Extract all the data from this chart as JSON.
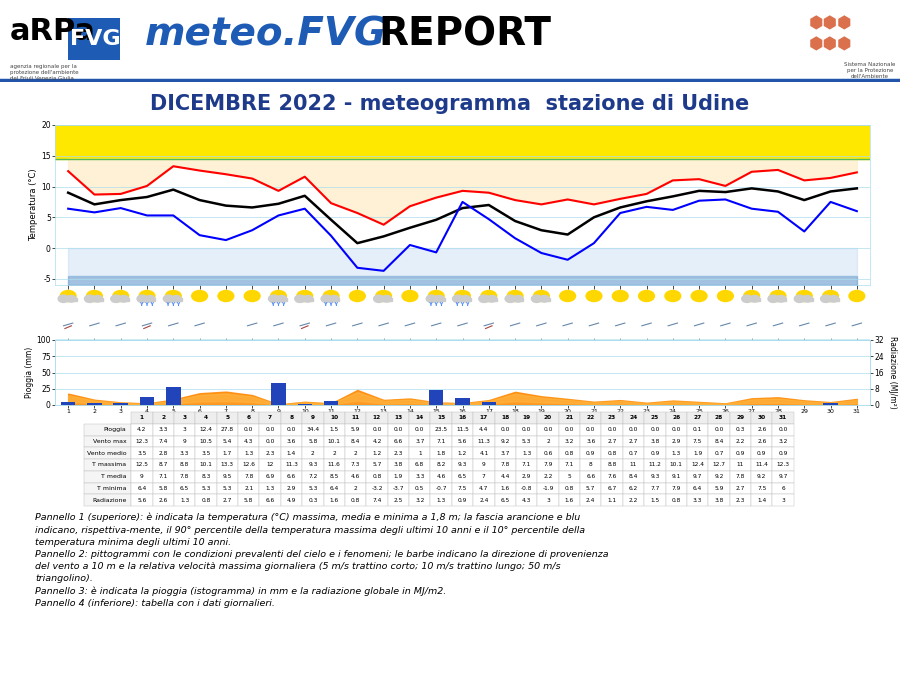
{
  "title": "DICEMBRE 2022 - meteogramma  stazione di Udine",
  "days": [
    1,
    2,
    3,
    4,
    5,
    6,
    7,
    8,
    9,
    10,
    11,
    12,
    13,
    14,
    15,
    16,
    17,
    18,
    19,
    20,
    21,
    22,
    23,
    24,
    25,
    26,
    27,
    28,
    29,
    30,
    31
  ],
  "t_max": [
    12.5,
    8.7,
    8.8,
    10.1,
    13.3,
    12.6,
    12.0,
    11.3,
    9.3,
    11.6,
    7.3,
    5.7,
    3.8,
    6.8,
    8.2,
    9.3,
    9.0,
    7.8,
    7.1,
    7.9,
    7.1,
    8.0,
    8.8,
    11.0,
    11.2,
    10.1,
    12.4,
    12.7,
    11.0,
    11.4,
    12.3
  ],
  "t_med": [
    9.0,
    7.1,
    7.8,
    8.3,
    9.5,
    7.8,
    6.9,
    6.6,
    7.2,
    8.5,
    4.6,
    0.8,
    1.9,
    3.3,
    4.6,
    6.5,
    7.0,
    4.4,
    2.9,
    2.2,
    5.0,
    6.6,
    7.6,
    8.4,
    9.3,
    9.1,
    9.7,
    9.2,
    7.8,
    9.2,
    9.7
  ],
  "t_min": [
    6.4,
    5.8,
    6.5,
    5.3,
    5.3,
    2.1,
    1.3,
    2.9,
    5.3,
    6.4,
    2.0,
    -3.2,
    -3.7,
    0.5,
    -0.7,
    7.5,
    4.7,
    1.6,
    -0.8,
    -1.9,
    0.8,
    5.7,
    6.7,
    6.2,
    7.7,
    7.9,
    6.4,
    5.9,
    2.7,
    7.5,
    6.0
  ],
  "t_max_clim_90": 14.5,
  "t_min_clim_10": -4.5,
  "pioggia": [
    4.2,
    3.3,
    3.0,
    12.4,
    27.8,
    0.0,
    0.0,
    0.0,
    34.4,
    1.5,
    5.9,
    0.0,
    0.0,
    0.0,
    23.5,
    11.5,
    4.4,
    0.0,
    0.0,
    0.0,
    0.0,
    0.0,
    0.0,
    0.0,
    0.0,
    0.0,
    0.1,
    0.0,
    0.3,
    2.6,
    0.0
  ],
  "radiazione": [
    5.6,
    2.6,
    1.3,
    0.8,
    2.7,
    5.8,
    6.6,
    4.9,
    0.3,
    1.6,
    0.8,
    7.4,
    2.5,
    3.2,
    1.3,
    0.9,
    2.4,
    6.5,
    4.3,
    3.0,
    1.6,
    2.4,
    1.1,
    2.2,
    1.5,
    0.8,
    3.3,
    3.8,
    2.3,
    1.4,
    3.0
  ],
  "vento_max": [
    12.3,
    7.4,
    9.0,
    10.5,
    5.4,
    4.3,
    0.0,
    3.6,
    5.8,
    10.1,
    8.4,
    4.2,
    6.6,
    3.7,
    7.1,
    5.6,
    11.3,
    9.2,
    5.3,
    2.0,
    3.2,
    3.6,
    2.7,
    2.7,
    3.8,
    2.9,
    7.5,
    8.4,
    2.2,
    2.6,
    3.2
  ],
  "table_rows": [
    {
      "label": "Pioggia",
      "values": [
        4.2,
        3.3,
        3.0,
        12.4,
        27.8,
        0.0,
        0.0,
        0.0,
        34.4,
        1.5,
        5.9,
        0.0,
        0.0,
        0.0,
        23.5,
        11.5,
        4.4,
        0.0,
        0.0,
        0.0,
        0.0,
        0.0,
        0.0,
        0.0,
        0.0,
        0.0,
        0.1,
        0.0,
        0.3,
        2.6,
        0.0
      ]
    },
    {
      "label": "Vento max",
      "values": [
        12.3,
        7.4,
        9.0,
        10.5,
        5.4,
        4.3,
        0.0,
        3.6,
        5.8,
        10.1,
        8.4,
        4.2,
        6.6,
        3.7,
        7.1,
        5.6,
        11.3,
        9.2,
        5.3,
        2.0,
        3.2,
        3.6,
        2.7,
        2.7,
        3.8,
        2.9,
        7.5,
        8.4,
        2.2,
        2.6,
        3.2
      ]
    },
    {
      "label": "Vento medio",
      "values": [
        3.5,
        2.8,
        3.3,
        3.5,
        1.7,
        1.3,
        2.3,
        1.4,
        2.0,
        2.0,
        2.0,
        1.2,
        2.3,
        1.0,
        1.8,
        1.2,
        4.1,
        3.7,
        1.3,
        0.6,
        0.8,
        0.9,
        0.8,
        0.7,
        0.9,
        1.3,
        1.9,
        0.7,
        0.9,
        0.9,
        0.9
      ]
    },
    {
      "label": "T massima",
      "values": [
        12.5,
        8.7,
        8.8,
        10.1,
        13.3,
        12.6,
        12.0,
        11.3,
        9.3,
        11.6,
        7.3,
        5.7,
        3.8,
        6.8,
        8.2,
        9.3,
        9.0,
        7.8,
        7.1,
        7.9,
        7.1,
        8.0,
        8.8,
        11.0,
        11.2,
        10.1,
        12.4,
        12.7,
        11.0,
        11.4,
        12.3
      ]
    },
    {
      "label": "T media",
      "values": [
        9.0,
        7.1,
        7.8,
        8.3,
        9.5,
        7.8,
        6.9,
        6.6,
        7.2,
        8.5,
        4.6,
        0.8,
        1.9,
        3.3,
        4.6,
        6.5,
        7.0,
        4.4,
        2.9,
        2.2,
        5.0,
        6.6,
        7.6,
        8.4,
        9.3,
        9.1,
        9.7,
        9.2,
        7.8,
        9.2,
        9.7
      ]
    },
    {
      "label": "T minima",
      "values": [
        6.4,
        5.8,
        6.5,
        5.3,
        5.3,
        2.1,
        1.3,
        2.9,
        5.3,
        6.4,
        2.0,
        -3.2,
        -3.7,
        0.5,
        -0.7,
        7.5,
        4.7,
        1.6,
        -0.8,
        -1.9,
        0.8,
        5.7,
        6.7,
        6.2,
        7.7,
        7.9,
        6.4,
        5.9,
        2.7,
        7.5,
        6.0
      ]
    },
    {
      "label": "Radiazione",
      "values": [
        5.6,
        2.6,
        1.3,
        0.8,
        2.7,
        5.8,
        6.6,
        4.9,
        0.3,
        1.6,
        0.8,
        7.4,
        2.5,
        3.2,
        1.3,
        0.9,
        2.4,
        6.5,
        4.3,
        3.0,
        1.6,
        2.4,
        1.1,
        2.2,
        1.5,
        0.8,
        3.3,
        3.8,
        2.3,
        1.4,
        3.0
      ]
    }
  ],
  "description_lines": [
    "Pannello 1 (superiore): è indicata la temperatura (°C) massima, media e minima a 1,8 m; la fascia arancione e blu",
    "indicano, rispettiva-mente, il 90° percentile della temperatura massima degli ultimi 10 anni e il 10° percentile della",
    "temperatura minima degli ultimi 10 anni.",
    "Pannello 2: pittogrammi con le condizioni prevalenti del cielo e i fenomeni; le barbe indicano la direzione di provenienza",
    "del vento a 10 m e la relativa velocità massima giornaliera (5 m/s trattino corto; 10 m/s trattino lungo; 50 m/s",
    "triangolino).",
    "Pannello 3: è indicata la pioggia (istogramma) in mm e la radiazione globale in MJ/m2.",
    "Pannello 4 (inferiore): tabella con i dati giornalieri."
  ],
  "header_sep_color": "#2255AA",
  "grid_color": "#AADDEE",
  "blue_band_color": "#7799DD",
  "orange_band_color": "#FFA040"
}
